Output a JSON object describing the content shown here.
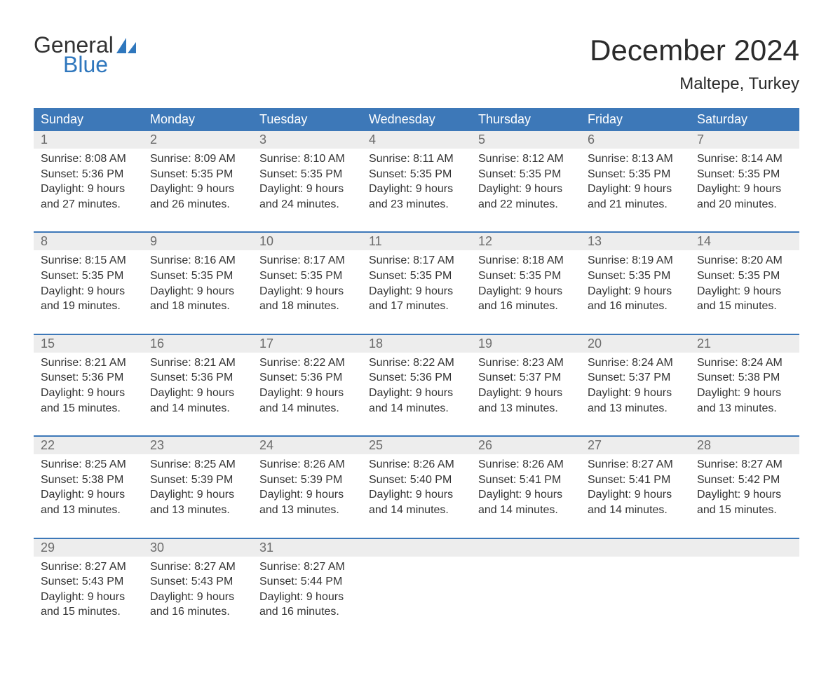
{
  "logo": {
    "general": "General",
    "blue": "Blue",
    "blue_color": "#2f77bd"
  },
  "title": "December 2024",
  "location": "Maltepe, Turkey",
  "colors": {
    "header_bg": "#3d78b8",
    "header_text": "#ffffff",
    "daynum_bg": "#ededed",
    "daynum_text": "#6b6b6b",
    "week_border": "#3d78b8"
  },
  "day_headers": [
    "Sunday",
    "Monday",
    "Tuesday",
    "Wednesday",
    "Thursday",
    "Friday",
    "Saturday"
  ],
  "weeks": [
    [
      {
        "num": "1",
        "sunrise": "Sunrise: 8:08 AM",
        "sunset": "Sunset: 5:36 PM",
        "dl1": "Daylight: 9 hours",
        "dl2": "and 27 minutes."
      },
      {
        "num": "2",
        "sunrise": "Sunrise: 8:09 AM",
        "sunset": "Sunset: 5:35 PM",
        "dl1": "Daylight: 9 hours",
        "dl2": "and 26 minutes."
      },
      {
        "num": "3",
        "sunrise": "Sunrise: 8:10 AM",
        "sunset": "Sunset: 5:35 PM",
        "dl1": "Daylight: 9 hours",
        "dl2": "and 24 minutes."
      },
      {
        "num": "4",
        "sunrise": "Sunrise: 8:11 AM",
        "sunset": "Sunset: 5:35 PM",
        "dl1": "Daylight: 9 hours",
        "dl2": "and 23 minutes."
      },
      {
        "num": "5",
        "sunrise": "Sunrise: 8:12 AM",
        "sunset": "Sunset: 5:35 PM",
        "dl1": "Daylight: 9 hours",
        "dl2": "and 22 minutes."
      },
      {
        "num": "6",
        "sunrise": "Sunrise: 8:13 AM",
        "sunset": "Sunset: 5:35 PM",
        "dl1": "Daylight: 9 hours",
        "dl2": "and 21 minutes."
      },
      {
        "num": "7",
        "sunrise": "Sunrise: 8:14 AM",
        "sunset": "Sunset: 5:35 PM",
        "dl1": "Daylight: 9 hours",
        "dl2": "and 20 minutes."
      }
    ],
    [
      {
        "num": "8",
        "sunrise": "Sunrise: 8:15 AM",
        "sunset": "Sunset: 5:35 PM",
        "dl1": "Daylight: 9 hours",
        "dl2": "and 19 minutes."
      },
      {
        "num": "9",
        "sunrise": "Sunrise: 8:16 AM",
        "sunset": "Sunset: 5:35 PM",
        "dl1": "Daylight: 9 hours",
        "dl2": "and 18 minutes."
      },
      {
        "num": "10",
        "sunrise": "Sunrise: 8:17 AM",
        "sunset": "Sunset: 5:35 PM",
        "dl1": "Daylight: 9 hours",
        "dl2": "and 18 minutes."
      },
      {
        "num": "11",
        "sunrise": "Sunrise: 8:17 AM",
        "sunset": "Sunset: 5:35 PM",
        "dl1": "Daylight: 9 hours",
        "dl2": "and 17 minutes."
      },
      {
        "num": "12",
        "sunrise": "Sunrise: 8:18 AM",
        "sunset": "Sunset: 5:35 PM",
        "dl1": "Daylight: 9 hours",
        "dl2": "and 16 minutes."
      },
      {
        "num": "13",
        "sunrise": "Sunrise: 8:19 AM",
        "sunset": "Sunset: 5:35 PM",
        "dl1": "Daylight: 9 hours",
        "dl2": "and 16 minutes."
      },
      {
        "num": "14",
        "sunrise": "Sunrise: 8:20 AM",
        "sunset": "Sunset: 5:35 PM",
        "dl1": "Daylight: 9 hours",
        "dl2": "and 15 minutes."
      }
    ],
    [
      {
        "num": "15",
        "sunrise": "Sunrise: 8:21 AM",
        "sunset": "Sunset: 5:36 PM",
        "dl1": "Daylight: 9 hours",
        "dl2": "and 15 minutes."
      },
      {
        "num": "16",
        "sunrise": "Sunrise: 8:21 AM",
        "sunset": "Sunset: 5:36 PM",
        "dl1": "Daylight: 9 hours",
        "dl2": "and 14 minutes."
      },
      {
        "num": "17",
        "sunrise": "Sunrise: 8:22 AM",
        "sunset": "Sunset: 5:36 PM",
        "dl1": "Daylight: 9 hours",
        "dl2": "and 14 minutes."
      },
      {
        "num": "18",
        "sunrise": "Sunrise: 8:22 AM",
        "sunset": "Sunset: 5:36 PM",
        "dl1": "Daylight: 9 hours",
        "dl2": "and 14 minutes."
      },
      {
        "num": "19",
        "sunrise": "Sunrise: 8:23 AM",
        "sunset": "Sunset: 5:37 PM",
        "dl1": "Daylight: 9 hours",
        "dl2": "and 13 minutes."
      },
      {
        "num": "20",
        "sunrise": "Sunrise: 8:24 AM",
        "sunset": "Sunset: 5:37 PM",
        "dl1": "Daylight: 9 hours",
        "dl2": "and 13 minutes."
      },
      {
        "num": "21",
        "sunrise": "Sunrise: 8:24 AM",
        "sunset": "Sunset: 5:38 PM",
        "dl1": "Daylight: 9 hours",
        "dl2": "and 13 minutes."
      }
    ],
    [
      {
        "num": "22",
        "sunrise": "Sunrise: 8:25 AM",
        "sunset": "Sunset: 5:38 PM",
        "dl1": "Daylight: 9 hours",
        "dl2": "and 13 minutes."
      },
      {
        "num": "23",
        "sunrise": "Sunrise: 8:25 AM",
        "sunset": "Sunset: 5:39 PM",
        "dl1": "Daylight: 9 hours",
        "dl2": "and 13 minutes."
      },
      {
        "num": "24",
        "sunrise": "Sunrise: 8:26 AM",
        "sunset": "Sunset: 5:39 PM",
        "dl1": "Daylight: 9 hours",
        "dl2": "and 13 minutes."
      },
      {
        "num": "25",
        "sunrise": "Sunrise: 8:26 AM",
        "sunset": "Sunset: 5:40 PM",
        "dl1": "Daylight: 9 hours",
        "dl2": "and 14 minutes."
      },
      {
        "num": "26",
        "sunrise": "Sunrise: 8:26 AM",
        "sunset": "Sunset: 5:41 PM",
        "dl1": "Daylight: 9 hours",
        "dl2": "and 14 minutes."
      },
      {
        "num": "27",
        "sunrise": "Sunrise: 8:27 AM",
        "sunset": "Sunset: 5:41 PM",
        "dl1": "Daylight: 9 hours",
        "dl2": "and 14 minutes."
      },
      {
        "num": "28",
        "sunrise": "Sunrise: 8:27 AM",
        "sunset": "Sunset: 5:42 PM",
        "dl1": "Daylight: 9 hours",
        "dl2": "and 15 minutes."
      }
    ],
    [
      {
        "num": "29",
        "sunrise": "Sunrise: 8:27 AM",
        "sunset": "Sunset: 5:43 PM",
        "dl1": "Daylight: 9 hours",
        "dl2": "and 15 minutes."
      },
      {
        "num": "30",
        "sunrise": "Sunrise: 8:27 AM",
        "sunset": "Sunset: 5:43 PM",
        "dl1": "Daylight: 9 hours",
        "dl2": "and 16 minutes."
      },
      {
        "num": "31",
        "sunrise": "Sunrise: 8:27 AM",
        "sunset": "Sunset: 5:44 PM",
        "dl1": "Daylight: 9 hours",
        "dl2": "and 16 minutes."
      },
      null,
      null,
      null,
      null
    ]
  ]
}
